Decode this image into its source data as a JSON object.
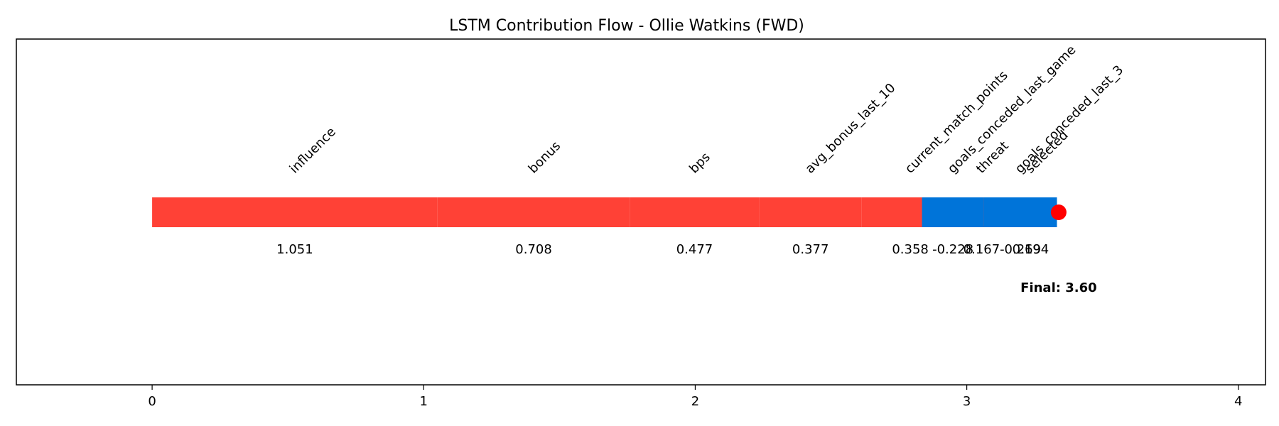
{
  "chart_data": {
    "type": "bar",
    "orientation": "horizontal-waterfall",
    "title": "LSTM Contribution Flow - Ollie Watkins (FWD)",
    "xlim": [
      -0.5,
      4.1
    ],
    "x_ticks": [
      0,
      1,
      2,
      3,
      4
    ],
    "grid": false,
    "contributions": [
      {
        "feature": "influence",
        "value": 1.051,
        "value_label": "1.051"
      },
      {
        "feature": "bonus",
        "value": 0.708,
        "value_label": "0.708"
      },
      {
        "feature": "bps",
        "value": 0.477,
        "value_label": "0.477"
      },
      {
        "feature": "avg_bonus_last_10",
        "value": 0.377,
        "value_label": "0.377"
      },
      {
        "feature": "current_match_points",
        "value": 0.358,
        "value_label": "0.358"
      },
      {
        "feature": "threat",
        "value": 0.167,
        "value_label": "0.167"
      },
      {
        "feature": "selected",
        "value": 0.194,
        "value_label": "0.194"
      },
      {
        "feature": "goals_conceded_last_3",
        "value": -0.269,
        "value_label": "-0.269"
      },
      {
        "feature": "goals_conceded_last_game",
        "value": -0.228,
        "value_label": "-0.228"
      }
    ],
    "final_value": 3.6,
    "final_label": "Final: 3.60",
    "colors": {
      "positive": "#ff4136",
      "negative": "#0074d9",
      "final_marker": "#ff0000"
    }
  }
}
